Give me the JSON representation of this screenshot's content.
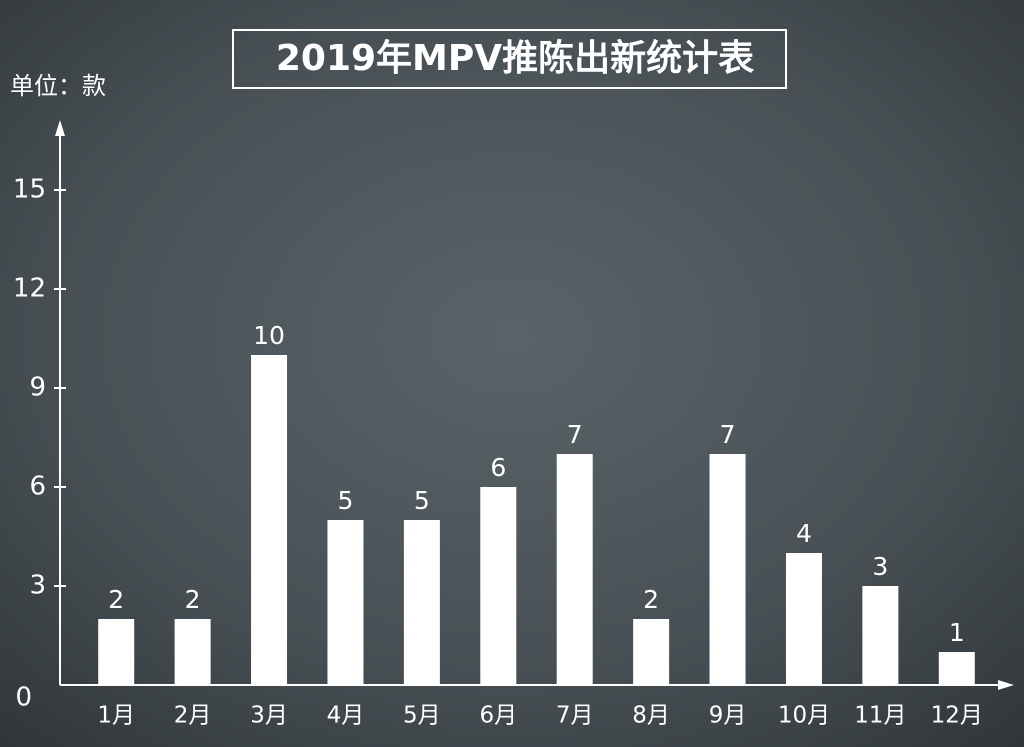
{
  "chart_data": {
    "type": "bar",
    "title": "2019年MPV推陈出新统计表",
    "ylabel": "单位：款",
    "categories": [
      "1月",
      "2月",
      "3月",
      "4月",
      "5月",
      "6月",
      "7月",
      "8月",
      "9月",
      "10月",
      "11月",
      "12月"
    ],
    "values": [
      2,
      2,
      10,
      5,
      5,
      6,
      7,
      2,
      7,
      4,
      3,
      1
    ],
    "color": "#ffffff",
    "ylim": [
      0,
      17
    ],
    "yticks": [
      0,
      3,
      6,
      9,
      12,
      15
    ],
    "grid": false
  }
}
